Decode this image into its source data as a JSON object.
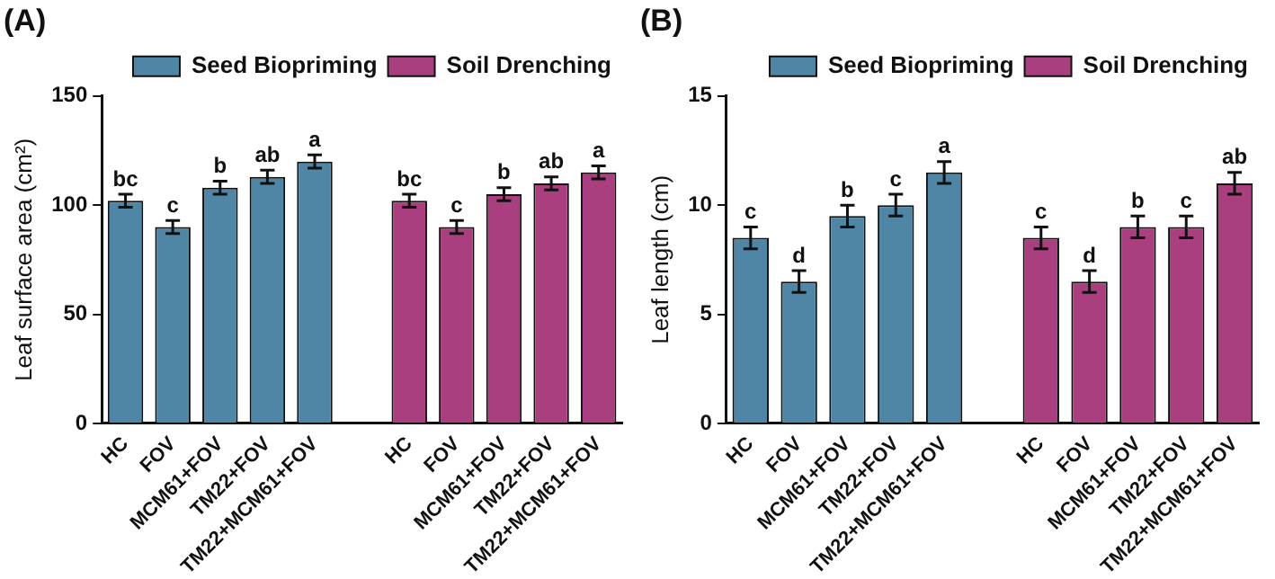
{
  "chart_data": [
    {
      "type": "bar",
      "title": "(A)",
      "ylabel": "Leaf surface area (cm²)",
      "categories": [
        "HC",
        "FOV",
        "MCM61+FOV",
        "TM22+FOV",
        "TM22+MCM61+FOV",
        null,
        "HC",
        "FOV",
        "MCM61+FOV",
        "TM22+FOV",
        "TM22+MCM61+FOV"
      ],
      "series": [
        {
          "name": "Seed Biopriming",
          "color": "#4f86a6",
          "values": [
            102,
            90,
            108,
            113,
            120,
            null,
            null,
            null,
            null,
            null,
            null
          ],
          "errors": [
            3,
            3,
            3,
            3,
            3,
            null,
            null,
            null,
            null,
            null,
            null
          ],
          "value_labels": [
            "bc",
            "c",
            "b",
            "ab",
            "a",
            null,
            null,
            null,
            null,
            null,
            null
          ]
        },
        {
          "name": "Soil Drenching",
          "color": "#a93f7e",
          "values": [
            null,
            null,
            null,
            null,
            null,
            null,
            102,
            90,
            105,
            110,
            115
          ],
          "errors": [
            null,
            null,
            null,
            null,
            null,
            null,
            3,
            3,
            3,
            3,
            3
          ],
          "value_labels": [
            null,
            null,
            null,
            null,
            null,
            null,
            "bc",
            "c",
            "b",
            "ab",
            "a"
          ]
        }
      ],
      "ylim": [
        0,
        150
      ],
      "yticks": [
        0,
        50,
        100,
        150
      ],
      "grid": false,
      "legend": "top"
    },
    {
      "type": "bar",
      "title": "(B)",
      "ylabel": "Leaf length (cm)",
      "categories": [
        "HC",
        "FOV",
        "MCM61+FOV",
        "TM22+FOV",
        "TM22+MCM61+FOV",
        null,
        "HC",
        "FOV",
        "MCM61+FOV",
        "TM22+FOV",
        "TM22+MCM61+FOV"
      ],
      "series": [
        {
          "name": "Seed Biopriming",
          "color": "#4f86a6",
          "values": [
            8.5,
            6.5,
            9.5,
            10,
            11.5,
            null,
            null,
            null,
            null,
            null,
            null
          ],
          "errors": [
            0.5,
            0.5,
            0.5,
            0.5,
            0.5,
            null,
            null,
            null,
            null,
            null,
            null
          ],
          "value_labels": [
            "c",
            "d",
            "b",
            "c",
            "a",
            null,
            null,
            null,
            null,
            null,
            null
          ]
        },
        {
          "name": "Soil Drenching",
          "color": "#a93f7e",
          "values": [
            null,
            null,
            null,
            null,
            null,
            null,
            8.5,
            6.5,
            9,
            9,
            11
          ],
          "errors": [
            null,
            null,
            null,
            null,
            null,
            null,
            0.5,
            0.5,
            0.5,
            0.5,
            0.5
          ],
          "value_labels": [
            null,
            null,
            null,
            null,
            null,
            null,
            "c",
            "d",
            "b",
            "c",
            "ab"
          ]
        }
      ],
      "ylim": [
        0,
        15
      ],
      "yticks": [
        0,
        5,
        10,
        15
      ],
      "grid": false,
      "legend": "top"
    }
  ]
}
